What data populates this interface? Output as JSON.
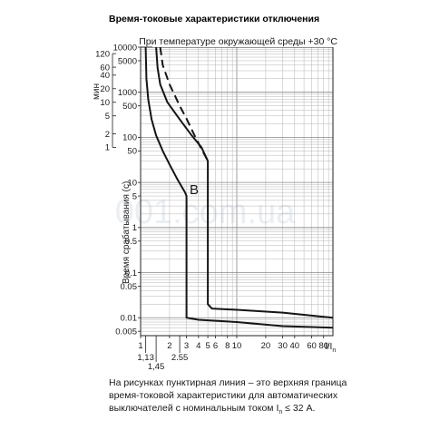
{
  "page_title": "Время-токовые характеристики отключения",
  "watermark": "001.com.ua",
  "note": {
    "line1": "На рисунках пунктирная линия – это верхняя граница",
    "line2": "время-токовой характеристики для автоматических",
    "line3_pre": "выключателей с номинальным током I",
    "line3_sub": "n",
    "line3_post": " ≤ 32 А."
  },
  "chart_data": {
    "type": "line",
    "title": "При температуре окружающей среды +30 °C",
    "xlabel": "I/I",
    "xlabel_sub": "n",
    "ylabel": "Время срабатывания (с)",
    "ylabel_minutes": "мин",
    "x_scale": "log",
    "y_scale": "log",
    "xlim": [
      1,
      100
    ],
    "ylim": [
      0.004,
      10000
    ],
    "grid": true,
    "curve_label": "B",
    "x_ticks": [
      {
        "value": 1,
        "label": "1"
      },
      {
        "value": 2,
        "label": "2"
      },
      {
        "value": 3,
        "label": "3"
      },
      {
        "value": 4,
        "label": "4"
      },
      {
        "value": 5,
        "label": "5"
      },
      {
        "value": 6,
        "label": "6"
      },
      {
        "value": 8,
        "label": "8"
      },
      {
        "value": 10,
        "label": "10"
      },
      {
        "value": 20,
        "label": "20"
      },
      {
        "value": 30,
        "label": "30"
      },
      {
        "value": 40,
        "label": "40"
      },
      {
        "value": 60,
        "label": "60"
      },
      {
        "value": 80,
        "label": "80"
      }
    ],
    "x_ticks_lower": [
      {
        "value": 1.13,
        "label": "1,13"
      },
      {
        "value": 1.45,
        "label": "1,45"
      },
      {
        "value": 2.55,
        "label": "2.55"
      }
    ],
    "y_ticks_seconds": [
      {
        "value": 10000,
        "label": "10000"
      },
      {
        "value": 5000,
        "label": "5000"
      },
      {
        "value": 1000,
        "label": "1000"
      },
      {
        "value": 500,
        "label": "500"
      },
      {
        "value": 100,
        "label": "100"
      },
      {
        "value": 50,
        "label": "50"
      },
      {
        "value": 10,
        "label": "10"
      },
      {
        "value": 5,
        "label": "5"
      },
      {
        "value": 1,
        "label": "1"
      },
      {
        "value": 0.5,
        "label": "0.5"
      },
      {
        "value": 0.1,
        "label": "0.1"
      },
      {
        "value": 0.05,
        "label": "0.05"
      },
      {
        "value": 0.01,
        "label": "0.01"
      },
      {
        "value": 0.005,
        "label": "0.005"
      }
    ],
    "y_ticks_minutes": [
      {
        "value": 7200,
        "label": "120"
      },
      {
        "value": 3600,
        "label": "60"
      },
      {
        "value": 2400,
        "label": "40"
      },
      {
        "value": 1200,
        "label": "20"
      },
      {
        "value": 600,
        "label": "10"
      },
      {
        "value": 300,
        "label": "5"
      },
      {
        "value": 120,
        "label": "2"
      },
      {
        "value": 60,
        "label": "1"
      }
    ],
    "series": [
      {
        "style": "solid",
        "points": [
          [
            1.13,
            10000
          ],
          [
            1.15,
            2000
          ],
          [
            1.2,
            700
          ],
          [
            1.3,
            250
          ],
          [
            1.45,
            110
          ],
          [
            1.7,
            50
          ],
          [
            2,
            25
          ],
          [
            2.4,
            12
          ],
          [
            2.9,
            6
          ],
          [
            3,
            5
          ],
          [
            3,
            0.01
          ],
          [
            4,
            0.009
          ],
          [
            10,
            0.008
          ],
          [
            30,
            0.0065
          ],
          [
            100,
            0.006
          ]
        ]
      },
      {
        "style": "solid",
        "points": [
          [
            1.45,
            10000
          ],
          [
            1.5,
            3500
          ],
          [
            1.6,
            1500
          ],
          [
            1.9,
            600
          ],
          [
            2.55,
            250
          ],
          [
            3.4,
            110
          ],
          [
            4.3,
            60
          ],
          [
            5,
            30
          ],
          [
            5,
            0.02
          ],
          [
            5.5,
            0.016
          ],
          [
            10,
            0.015
          ],
          [
            30,
            0.013
          ],
          [
            100,
            0.01
          ]
        ]
      },
      {
        "style": "dashed",
        "points": [
          [
            1.6,
            10000
          ],
          [
            1.7,
            4000
          ],
          [
            2,
            1500
          ],
          [
            2.55,
            500
          ],
          [
            3,
            260
          ],
          [
            3.5,
            130
          ],
          [
            4.2,
            60
          ],
          [
            5,
            30
          ]
        ]
      }
    ]
  }
}
